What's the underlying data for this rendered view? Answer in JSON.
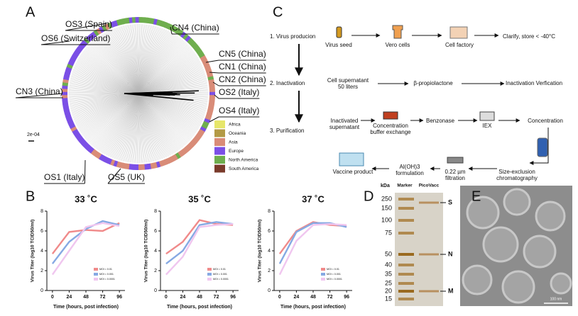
{
  "panel_labels": [
    "A",
    "B",
    "C",
    "D",
    "E"
  ],
  "tree": {
    "labels": [
      "OS3 (Spain)",
      "CN4 (China)",
      "OS6 (Switzerland)",
      "CN5 (China)",
      "CN1 (China)",
      "CN2 (China)",
      "CN3 (China)",
      "OS2 (Italy)",
      "OS4 (Italy)",
      "OS1 (Italy)",
      "OS5 (UK)"
    ],
    "scale": "2e-04",
    "legend": [
      {
        "name": "Africa",
        "color": "#e6e66a"
      },
      {
        "name": "Oceania",
        "color": "#b39a45"
      },
      {
        "name": "Asia",
        "color": "#d98c78"
      },
      {
        "name": "Europe",
        "color": "#7b4fe6"
      },
      {
        "name": "North America",
        "color": "#6fae4e"
      },
      {
        "name": "South America",
        "color": "#7a3b2b"
      }
    ]
  },
  "chart_data": [
    {
      "type": "line",
      "title": "33 ˚C",
      "x": [
        0,
        24,
        48,
        72,
        96
      ],
      "xlim": [
        -8,
        104
      ],
      "xticks": [
        0,
        24,
        48,
        72,
        96
      ],
      "ylim": [
        0,
        8
      ],
      "yticks": [
        0,
        2,
        4,
        6,
        8
      ],
      "x_label": "Time (hours, post infection)",
      "y_label": "Virus Titer (log10 TCID50/ml)",
      "series": [
        {
          "name": "MOI = 0.01",
          "color": "#f08a8a",
          "values": [
            3.7,
            5.9,
            6.1,
            6.0,
            6.8
          ]
        },
        {
          "name": "MOI = 0.001",
          "color": "#86a9e3",
          "values": [
            2.7,
            4.9,
            6.2,
            7.0,
            6.6
          ]
        },
        {
          "name": "MOI = 0.0001",
          "color": "#f0c6ef",
          "values": [
            1.6,
            4.0,
            6.4,
            6.8,
            6.5
          ]
        }
      ]
    },
    {
      "type": "line",
      "title": "35 ˚C",
      "x": [
        0,
        24,
        48,
        72,
        96
      ],
      "xlim": [
        -8,
        104
      ],
      "xticks": [
        0,
        24,
        48,
        72,
        96
      ],
      "ylim": [
        0,
        8
      ],
      "yticks": [
        0,
        2,
        4,
        6,
        8
      ],
      "x_label": "Time (hours, post infection)",
      "y_label": "Virus Titer (log10 TCID50/ml)",
      "series": [
        {
          "name": "MOI = 0.01",
          "color": "#f08a8a",
          "values": [
            3.7,
            4.9,
            7.1,
            6.7,
            6.6
          ]
        },
        {
          "name": "MOI = 0.001",
          "color": "#86a9e3",
          "values": [
            2.7,
            4.0,
            6.6,
            6.9,
            6.7
          ]
        },
        {
          "name": "MOI = 0.0001",
          "color": "#f0c6ef",
          "values": [
            1.6,
            3.4,
            6.4,
            6.6,
            6.7
          ]
        }
      ]
    },
    {
      "type": "line",
      "title": "37 ˚C",
      "x": [
        0,
        24,
        48,
        72,
        96
      ],
      "xlim": [
        -8,
        104
      ],
      "xticks": [
        0,
        24,
        48,
        72,
        96
      ],
      "ylim": [
        0,
        8
      ],
      "yticks": [
        0,
        2,
        4,
        6,
        8
      ],
      "x_label": "Time (hours, post infection)",
      "y_label": "Virus Titer (log10 TCID50/ml)",
      "series": [
        {
          "name": "MOI = 0.01",
          "color": "#f08a8a",
          "values": [
            3.7,
            6.0,
            6.9,
            6.6,
            6.5
          ]
        },
        {
          "name": "MOI = 0.001",
          "color": "#86a9e3",
          "values": [
            2.7,
            5.9,
            6.8,
            6.8,
            6.4
          ]
        },
        {
          "name": "MOI = 0.0001",
          "color": "#f0c6ef",
          "values": [
            1.6,
            5.0,
            6.6,
            6.7,
            6.6
          ]
        }
      ]
    }
  ],
  "workflow": {
    "steps": [
      "1. Virus producion",
      "2. Inactivation",
      "3. Purification"
    ],
    "nodes": [
      [
        "Virus seed"
      ],
      [
        "Vero cells"
      ],
      [
        "Cell factory"
      ],
      [
        "Clarify, store < -40°C"
      ],
      [
        "Cell supernatant",
        "50 liters"
      ],
      [
        "β-propiolactone"
      ],
      [
        "Inactivation Verfication"
      ],
      [
        "Inactivated",
        "supernatant"
      ],
      [
        "Concentration",
        "buffer exchange"
      ],
      [
        "Benzonase"
      ],
      [
        "IEX"
      ],
      [
        "Concentration"
      ],
      [
        "Size-exclusion",
        "chromatography"
      ],
      [
        "0.22 µm",
        "filtration"
      ],
      [
        "Al(OH)3",
        "formulation"
      ],
      [
        "Vaccine product"
      ]
    ]
  },
  "gel": {
    "unit": "kDa",
    "lanes": [
      "Marker",
      "PicoVacc"
    ],
    "markers": [
      250,
      150,
      100,
      75,
      50,
      40,
      35,
      25,
      20,
      15
    ],
    "bands": [
      "S",
      "N",
      "M"
    ]
  },
  "micrograph": {
    "scale_bar": "100 nm"
  }
}
